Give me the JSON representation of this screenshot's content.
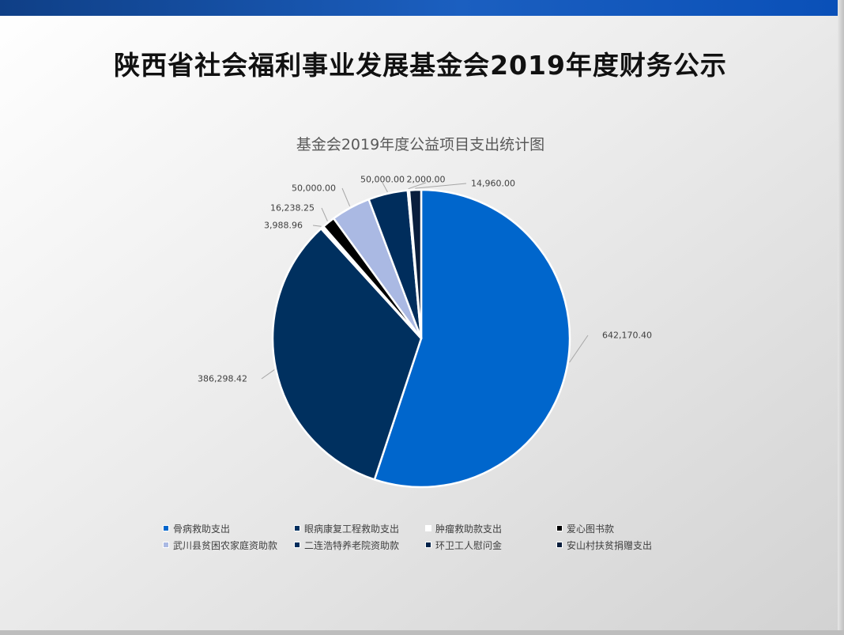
{
  "page_title": "陕西省社会福利事业发展基金会2019年度财务公示",
  "chart_data": {
    "type": "pie",
    "title": "基金会2019年度公益项目支出统计图",
    "legend_position": "bottom",
    "categories": [
      "骨病救助支出",
      "眼病康复工程救助支出",
      "肿瘤救助款支出",
      "爱心图书款",
      "武川县贫困农家庭资助款",
      "二连浩特养老院资助款",
      "环卫工人慰问金",
      "安山村扶贫捐赠支出"
    ],
    "values": [
      642170.4,
      386298.42,
      3988.96,
      16238.25,
      50000.0,
      50000.0,
      2000.0,
      14960.0
    ],
    "value_labels": [
      "642,170.40",
      "386,298.42",
      "3,988.96",
      "16,238.25",
      "50,000.00",
      "50,000.00",
      "2,000.00",
      "14,960.00"
    ],
    "colors": [
      "#0066cc",
      "#00305f",
      "#ffffff",
      "#000000",
      "#aab9e3",
      "#002d5c",
      "#00234a",
      "#0a1e3c"
    ]
  }
}
